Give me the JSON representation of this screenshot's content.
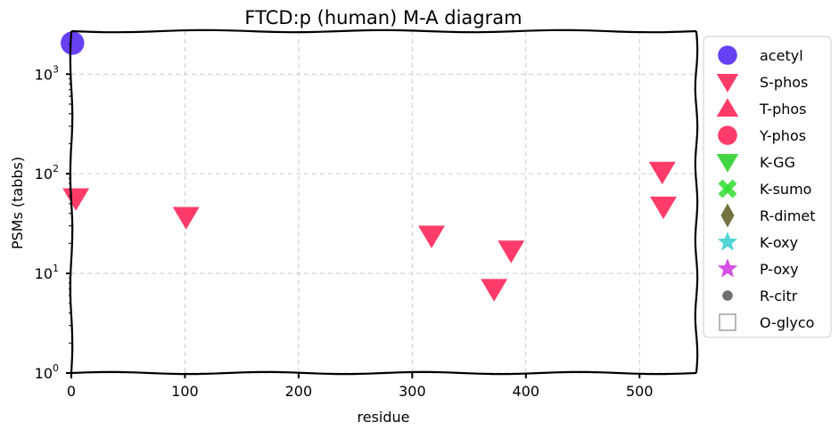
{
  "chart_data": {
    "type": "scatter",
    "title": "FTCD:p (human) M-A diagram",
    "xlabel": "residue",
    "ylabel": "PSMs (tabbs)",
    "xlim": [
      0,
      550
    ],
    "ylim": [
      1,
      2700
    ],
    "yscale": "log",
    "grid": true,
    "legend_placement": "outside-right",
    "x_ticks": [
      {
        "value": 0,
        "label": "0"
      },
      {
        "value": 100,
        "label": "100"
      },
      {
        "value": 200,
        "label": "200"
      },
      {
        "value": 300,
        "label": "300"
      },
      {
        "value": 400,
        "label": "400"
      },
      {
        "value": 500,
        "label": "500"
      }
    ],
    "y_ticks": [
      {
        "value": 1,
        "base": "10",
        "exp": "0"
      },
      {
        "value": 10,
        "base": "10",
        "exp": "1"
      },
      {
        "value": 100,
        "base": "10",
        "exp": "2"
      },
      {
        "value": 1000,
        "base": "10",
        "exp": "3"
      }
    ],
    "series": [
      {
        "name": "acetyl",
        "marker": "circle",
        "color": "#4b1ef0",
        "points": [
          {
            "x": 1,
            "y": 2050
          }
        ]
      },
      {
        "name": "S-phos",
        "marker": "triangle-down",
        "color": "#ff1a4f",
        "points": [
          {
            "x": 4,
            "y": 57
          },
          {
            "x": 101,
            "y": 37
          },
          {
            "x": 317,
            "y": 24
          },
          {
            "x": 372,
            "y": 7
          },
          {
            "x": 387,
            "y": 17
          },
          {
            "x": 520,
            "y": 105
          },
          {
            "x": 521,
            "y": 47
          }
        ]
      },
      {
        "name": "T-phos",
        "marker": "triangle-up",
        "color": "#ff1a4f",
        "points": []
      },
      {
        "name": "Y-phos",
        "marker": "circle",
        "color": "#ff1a4f",
        "points": []
      },
      {
        "name": "K-GG",
        "marker": "triangle-down",
        "color": "#22cc22",
        "points": []
      },
      {
        "name": "K-sumo",
        "marker": "x",
        "color": "#33dd33",
        "points": []
      },
      {
        "name": "R-dimet",
        "marker": "diamond",
        "color": "#5a5a20",
        "points": []
      },
      {
        "name": "K-oxy",
        "marker": "star",
        "color": "#33cccc",
        "points": []
      },
      {
        "name": "P-oxy",
        "marker": "star",
        "color": "#cc33dd",
        "points": []
      },
      {
        "name": "R-citr",
        "marker": "dot",
        "color": "#555555",
        "points": []
      },
      {
        "name": "O-glyco",
        "marker": "square-open",
        "color": "#888888",
        "points": []
      }
    ]
  }
}
